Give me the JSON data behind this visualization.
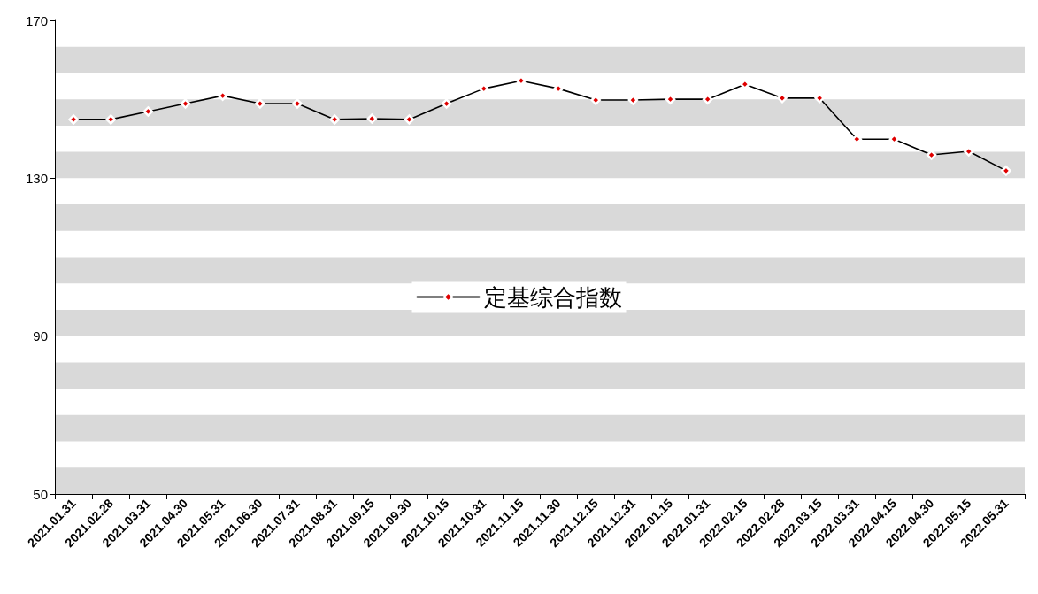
{
  "chart_data": {
    "type": "line",
    "categories": [
      "2021.01.31",
      "2021.02.28",
      "2021.03.31",
      "2021.04.30",
      "2021.05.31",
      "2021.06.30",
      "2021.07.31",
      "2021.08.31",
      "2021.09.15",
      "2021.09.30",
      "2021.10.15",
      "2021.10.31",
      "2021.11.15",
      "2021.11.30",
      "2021.12.15",
      "2021.12.31",
      "2022.01.15",
      "2022.01.31",
      "2022.02.15",
      "2022.02.28",
      "2022.03.15",
      "2022.03.31",
      "2022.04.15",
      "2022.04.30",
      "2022.05.15",
      "2022.05.31"
    ],
    "series": [
      {
        "name": "定基综合指数",
        "color": "#000000",
        "values": [
          144.9,
          144.9,
          146.9,
          148.9,
          150.9,
          148.9,
          148.9,
          144.9,
          145.1,
          144.9,
          148.9,
          152.7,
          154.7,
          152.7,
          149.8,
          149.8,
          150.0,
          150.0,
          153.8,
          150.3,
          150.3,
          139.9,
          139.9,
          135.9,
          136.8,
          131.9
        ]
      }
    ],
    "ylim": [
      50,
      170
    ],
    "yticks": [
      50,
      90,
      130,
      170
    ],
    "bands": [
      {
        "axis": "y",
        "from": 50,
        "to": 56.67,
        "color": "#d9d9d9"
      },
      {
        "axis": "y",
        "from": 63.33,
        "to": 70,
        "color": "#d9d9d9"
      },
      {
        "axis": "y",
        "from": 76.67,
        "to": 83.33,
        "color": "#d9d9d9"
      },
      {
        "axis": "y",
        "from": 90,
        "to": 96.67,
        "color": "#d9d9d9"
      },
      {
        "axis": "y",
        "from": 103.33,
        "to": 110,
        "color": "#d9d9d9"
      },
      {
        "axis": "y",
        "from": 116.67,
        "to": 123.33,
        "color": "#d9d9d9"
      },
      {
        "axis": "y",
        "from": 130,
        "to": 136.67,
        "color": "#d9d9d9"
      },
      {
        "axis": "y",
        "from": 143.33,
        "to": 150,
        "color": "#d9d9d9"
      },
      {
        "axis": "y",
        "from": 156.67,
        "to": 163.33,
        "color": "#d9d9d9"
      }
    ],
    "grid": false,
    "legend": "center",
    "marker": "diamond",
    "line_style": "solid"
  }
}
